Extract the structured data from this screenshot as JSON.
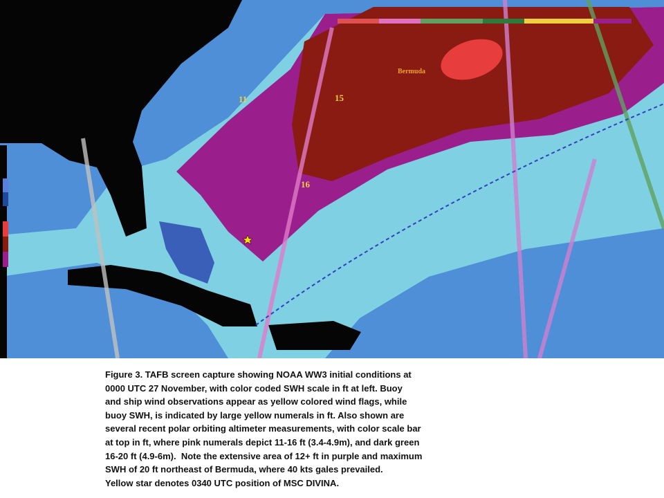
{
  "map": {
    "labels": {
      "bermuda": "Bermuda",
      "buoy_11": "11",
      "buoy_15": "15",
      "buoy_16": "16"
    }
  },
  "caption": {
    "lines": [
      "Figure 3. TAFB screen capture showing NOAA WW3 initial conditions at",
      "0000 UTC 27 November, with color coded SWH scale in ft at left. Buoy",
      "and ship wind observations appear as yellow colored wind flags, while",
      "buoy SWH, is indicated by large yellow numerals in ft. Also shown are",
      "several recent polar orbiting altimeter measurements, with color scale bar",
      "at top in ft, where pink numerals depict 11-16 ft (3.4-4.9m), and dark green",
      "16-20 ft (4.9-6m).  Note the extensive area of 12+ ft in purple and maximum",
      "SWH of 20 ft northeast of Bermuda, where 40 kts gales prevailed.",
      "Yellow star denotes 0340 UTC position of MSC DIVINA."
    ]
  }
}
